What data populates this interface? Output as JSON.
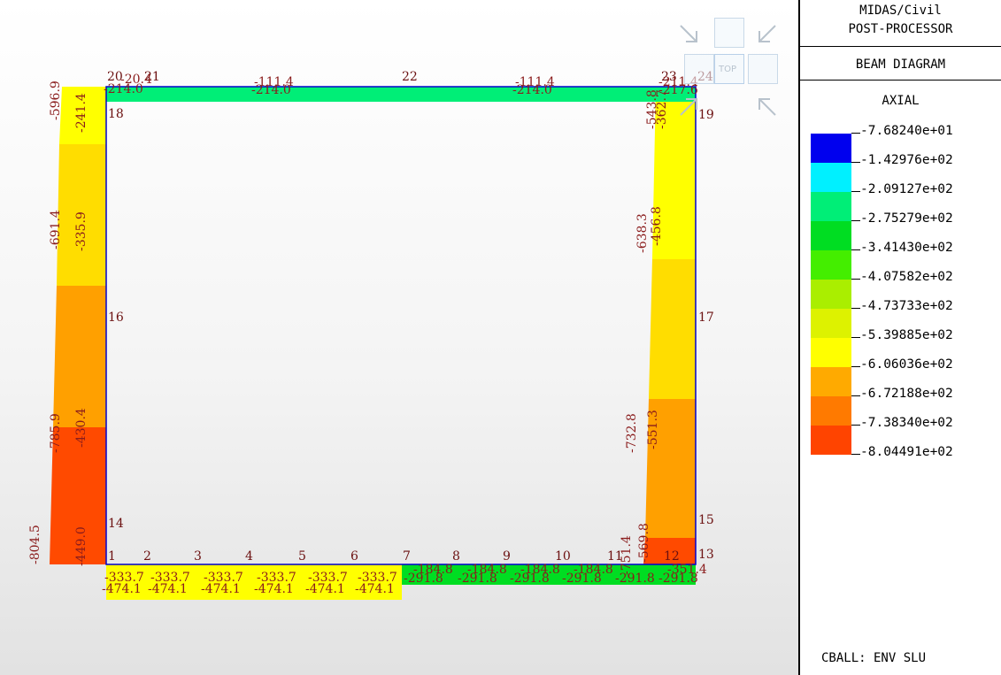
{
  "sidebar": {
    "line1": "MIDAS/Civil",
    "line2": "POST-PROCESSOR",
    "diagram": "BEAM DIAGRAM",
    "component": "AXIAL",
    "footer": "CBALL: ENV SLU"
  },
  "legend": [
    {
      "value": "-7.68240e+01",
      "color": "#0000ee"
    },
    {
      "value": "-1.42976e+02",
      "color": "#00f0ff"
    },
    {
      "value": "-2.09127e+02",
      "color": "#00ee77"
    },
    {
      "value": "-2.75279e+02",
      "color": "#00dd22"
    },
    {
      "value": "-3.41430e+02",
      "color": "#44ee00"
    },
    {
      "value": "-4.07582e+02",
      "color": "#aaee00"
    },
    {
      "value": "-4.73733e+02",
      "color": "#ddf200"
    },
    {
      "value": "-5.39885e+02",
      "color": "#ffff00"
    },
    {
      "value": "-6.06036e+02",
      "color": "#ffaa00"
    },
    {
      "value": "-6.72188e+02",
      "color": "#ff7a00"
    },
    {
      "value": "-7.38340e+02",
      "color": "#ff4400"
    },
    {
      "value": "-8.04491e+02",
      "color": null
    }
  ],
  "nav": {
    "top_label": "TOP"
  },
  "nodes": [
    "1",
    "2",
    "3",
    "4",
    "5",
    "6",
    "7",
    "8",
    "9",
    "10",
    "11",
    "12",
    "13",
    "14",
    "15",
    "16",
    "17",
    "18",
    "19",
    "20",
    "21",
    "22",
    "23",
    "24"
  ],
  "labels": {
    "left_col": [
      "-596.9",
      "-241.4",
      "-691.4",
      "-335.9",
      "-785.9",
      "-430.4",
      "-804.5",
      "-449.0"
    ],
    "right_col": [
      "-543.8",
      "-362.7",
      "-638.3",
      "-456.8",
      "-732.8",
      "-551.3",
      "-751.4",
      "-569.8"
    ],
    "top_beam": [
      "-214.0",
      "-111.4",
      "-214.0",
      "-111.4",
      "-214.0",
      "-217.6",
      "-20.4",
      "-211.4"
    ],
    "bottom_left": [
      "-333.7",
      "-474.1"
    ],
    "bottom_right": [
      "-184.8",
      "-291.8",
      "-351.4"
    ]
  },
  "colors": {
    "frame": "#0000cc",
    "top_beam": "#00ee77",
    "bottom_right": "#00dd22",
    "bottom_left": "#ffff00"
  }
}
